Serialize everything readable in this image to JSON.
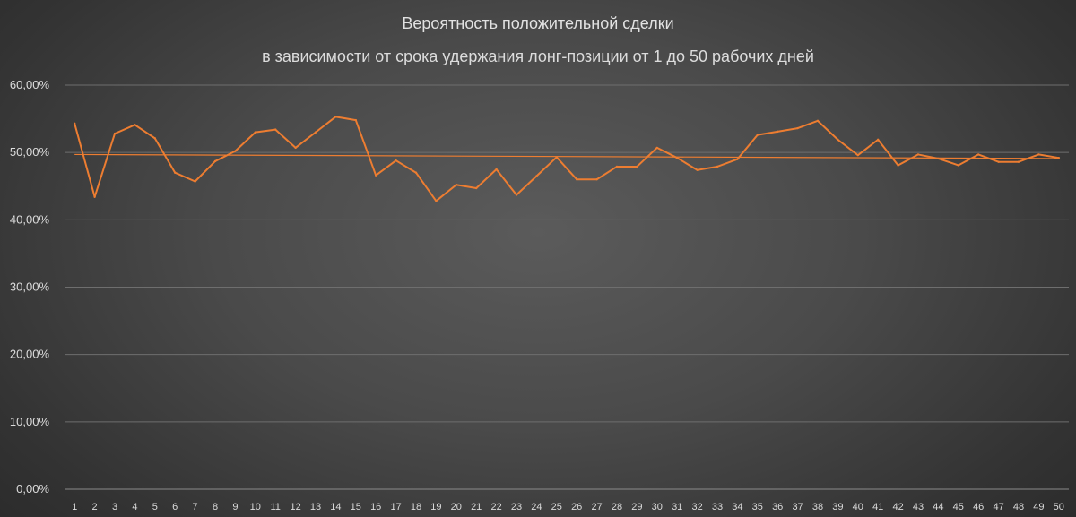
{
  "chart_data": {
    "type": "line",
    "title": "Вероятность положительной сделки",
    "subtitle": "в зависимости от срока удержания лонг-позиции от 1 до 50 рабочих дней",
    "xlabel": "",
    "ylabel": "",
    "ylim": [
      0,
      0.6
    ],
    "yticks": [
      0,
      0.1,
      0.2,
      0.3,
      0.4,
      0.5,
      0.6
    ],
    "ytick_labels": [
      "0,00%",
      "10,00%",
      "20,00%",
      "30,00%",
      "40,00%",
      "50,00%",
      "60,00%"
    ],
    "categories": [
      "1",
      "2",
      "3",
      "4",
      "5",
      "6",
      "7",
      "8",
      "9",
      "10",
      "11",
      "12",
      "13",
      "14",
      "15",
      "16",
      "17",
      "18",
      "19",
      "20",
      "21",
      "22",
      "23",
      "24",
      "25",
      "26",
      "27",
      "28",
      "29",
      "30",
      "31",
      "32",
      "33",
      "34",
      "35",
      "36",
      "37",
      "38",
      "39",
      "40",
      "41",
      "42",
      "43",
      "44",
      "45",
      "46",
      "47",
      "48",
      "49",
      "50"
    ],
    "series": [
      {
        "values": [
          0.543,
          0.434,
          0.528,
          0.541,
          0.521,
          0.47,
          0.457,
          0.487,
          0.502,
          0.53,
          0.534,
          0.507,
          0.53,
          0.553,
          0.548,
          0.466,
          0.488,
          0.47,
          0.428,
          0.452,
          0.447,
          0.475,
          0.437,
          0.465,
          0.493,
          0.46,
          0.46,
          0.479,
          0.479,
          0.507,
          0.492,
          0.474,
          0.479,
          0.49,
          0.526,
          0.531,
          0.536,
          0.547,
          0.519,
          0.496,
          0.519,
          0.481,
          0.497,
          0.491,
          0.481,
          0.497,
          0.486,
          0.486,
          0.497,
          0.492
        ]
      }
    ],
    "trendline": {
      "type": "linear",
      "start": 0.497,
      "end": 0.491
    },
    "grid": true,
    "legend": "none",
    "colors": {
      "series": "#ed7d31",
      "trend": "#ed7d31",
      "grid": "#6e6e6e",
      "text": "#dcdcdc"
    }
  }
}
